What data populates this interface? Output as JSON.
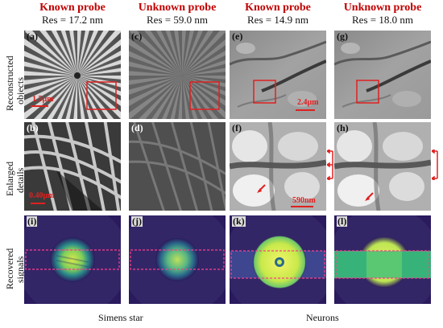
{
  "columns": [
    {
      "title": "Known probe",
      "res": "Res = 17.2 nm"
    },
    {
      "title": "Unknown probe",
      "res": "Res = 59.0 nm"
    },
    {
      "title": "Known probe",
      "res": "Res = 14.9 nm"
    },
    {
      "title": "Unknown probe",
      "res": "Res = 18.0 nm"
    }
  ],
  "row_labels": {
    "row1_a": "Reconstructed",
    "row1_b": "objects",
    "row2_a": "Enlarged",
    "row2_b": "details",
    "row3_a": "Recovered",
    "row3_b": "signals"
  },
  "panels": {
    "a": "(a)",
    "b": "(b)",
    "c": "(c)",
    "d": "(d)",
    "e": "(e)",
    "f": "(f)",
    "g": "(g)",
    "h": "(h)",
    "i": "(i)",
    "j": "(j)",
    "k": "(k)",
    "l": "(l)"
  },
  "scalebars": {
    "a": "1.5μm",
    "b": "0.40μm",
    "e": "2.4μm",
    "f": "590nm"
  },
  "bottom_labels": {
    "left": "Simens star",
    "right": "Neurons"
  },
  "colors": {
    "title_red": "#c00000",
    "roi_box": "#e02020",
    "signal_band": "#ff3c8c"
  }
}
